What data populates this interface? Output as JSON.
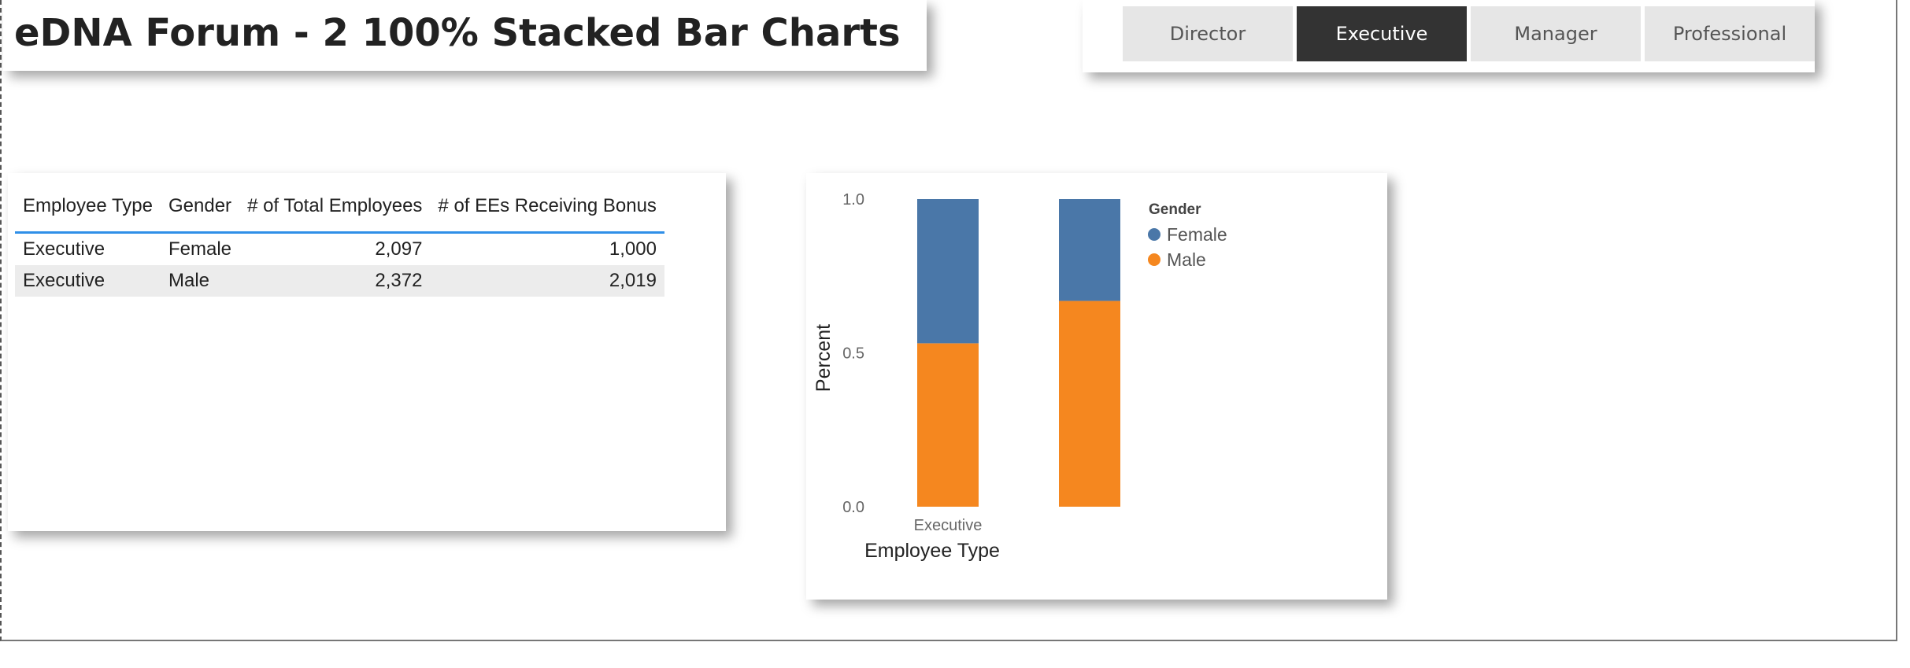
{
  "title": "eDNA Forum - 2 100% Stacked Bar Charts",
  "slicer": {
    "items": [
      {
        "label": "Director",
        "selected": false
      },
      {
        "label": "Executive",
        "selected": true
      },
      {
        "label": "Manager",
        "selected": false
      },
      {
        "label": "Professional",
        "selected": false
      }
    ]
  },
  "table": {
    "headers": [
      "Employee Type",
      "Gender",
      "# of Total Employees",
      "# of EEs Receiving Bonus"
    ],
    "rows": [
      [
        "Executive",
        "Female",
        "2,097",
        "1,000"
      ],
      [
        "Executive",
        "Male",
        "2,372",
        "2,019"
      ]
    ]
  },
  "chart_data": {
    "type": "bar",
    "stacked": "100%",
    "categories": [
      "Executive",
      ""
    ],
    "series": [
      {
        "name": "Male",
        "color": "#F5871F",
        "values": [
          0.531,
          0.669
        ]
      },
      {
        "name": "Female",
        "color": "#4A77A8",
        "values": [
          0.469,
          0.331
        ]
      }
    ],
    "xlabel": "Employee Type",
    "ylabel": "Percent",
    "ylim": [
      0,
      1
    ],
    "yticks": [
      "0.0",
      "0.5",
      "1.0"
    ],
    "legend": {
      "title": "Gender",
      "entries": [
        "Female",
        "Male"
      ],
      "placement": "top-right"
    },
    "grid": false
  }
}
